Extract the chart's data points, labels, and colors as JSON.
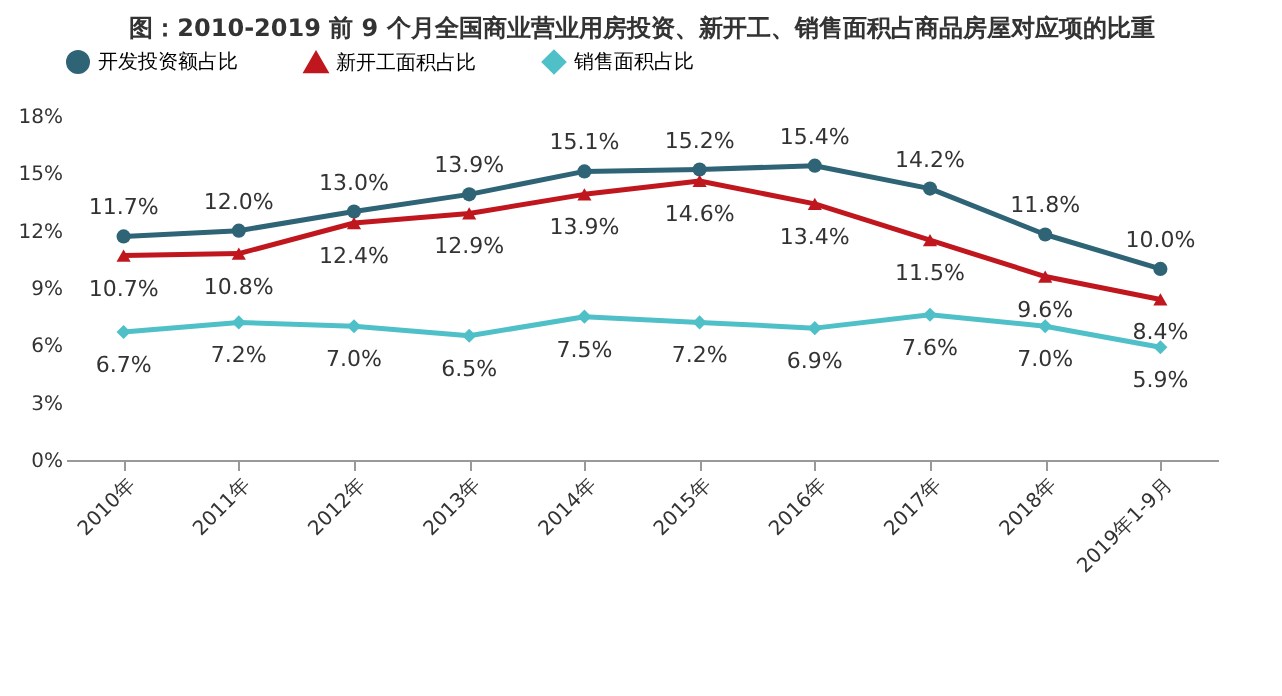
{
  "chart_data": {
    "type": "line",
    "title": "图：2010-2019 前 9 个月全国商业营业用房投资、新开工、销售面积占商品房屋对应项的比重",
    "categories": [
      "2010年",
      "2011年",
      "2012年",
      "2013年",
      "2014年",
      "2015年",
      "2016年",
      "2017年",
      "2018年",
      "2019年1-9月"
    ],
    "series": [
      {
        "name": "开发投资额占比",
        "color": "#2e6476",
        "marker": "circle",
        "values": [
          11.7,
          12.0,
          13.0,
          13.9,
          15.1,
          15.2,
          15.4,
          14.2,
          11.8,
          10.0
        ],
        "value_labels": [
          "11.7%",
          "12.0%",
          "13.0%",
          "13.9%",
          "15.1%",
          "15.2%",
          "15.4%",
          "14.2%",
          "11.8%",
          "10.0%"
        ]
      },
      {
        "name": "新开工面积占比",
        "color": "#c0171f",
        "marker": "triangle",
        "values": [
          10.7,
          10.8,
          12.4,
          12.9,
          13.9,
          14.6,
          13.4,
          11.5,
          9.6,
          8.4
        ],
        "value_labels": [
          "10.7%",
          "10.8%",
          "12.4%",
          "12.9%",
          "13.9%",
          "14.6%",
          "13.4%",
          "11.5%",
          "9.6%",
          "8.4%"
        ]
      },
      {
        "name": "销售面积占比",
        "color": "#4fc0c8",
        "marker": "diamond",
        "values": [
          6.7,
          7.2,
          7.0,
          6.5,
          7.5,
          7.2,
          6.9,
          7.6,
          7.0,
          5.9
        ],
        "value_labels": [
          "6.7%",
          "7.2%",
          "7.0%",
          "6.5%",
          "7.5%",
          "7.2%",
          "6.9%",
          "7.6%",
          "7.0%",
          "5.9%"
        ]
      }
    ],
    "ylim": [
      0,
      18
    ],
    "yticks": [
      {
        "value": 0,
        "label": "0%"
      },
      {
        "value": 3,
        "label": "3%"
      },
      {
        "value": 6,
        "label": "6%"
      },
      {
        "value": 9,
        "label": "9%"
      },
      {
        "value": 12,
        "label": "12%"
      },
      {
        "value": 15,
        "label": "15%"
      },
      {
        "value": 18,
        "label": "18%"
      }
    ],
    "grid": false,
    "legend": "top",
    "line_style": "solid"
  }
}
